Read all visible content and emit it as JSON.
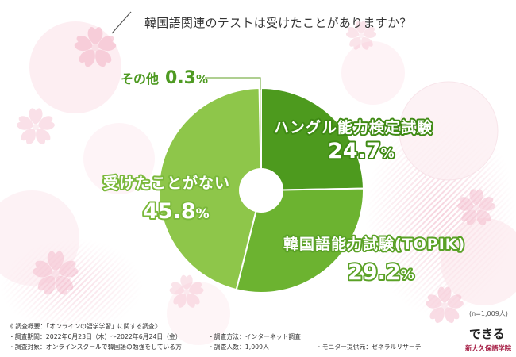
{
  "chart_data": {
    "type": "pie",
    "donut": true,
    "title": "韓国語関連のテストは受けたことがありますか？",
    "categories": [
      "ハングル能力検定試験",
      "韓国語能力試験(TOPIK)",
      "受けたことがない",
      "その他"
    ],
    "values": [
      24.7,
      29.2,
      45.8,
      0.3
    ],
    "unit": "%",
    "colors": [
      "#4d9a1e",
      "#6cb330",
      "#8ec64a",
      "#b9da8e"
    ],
    "sample_label": "(n=1,009人)"
  },
  "survey": {
    "heading": "《 調査概要：「オンラインの語学学習」に関する調査》",
    "period": "・調査期間：2022年6月23日（木）〜2022年6月24日（金）",
    "method": "・調査方法：インターネット調査",
    "target": "・調査対象：オンラインスクールで韓国語の勉強をしている方",
    "count": "・調査人数：1,009人",
    "provider": "・モニター提供元：ゼネラルリサーチ"
  },
  "logo": {
    "mark": "できる",
    "name": "新大久保語学院",
    "brand_color": "#a61e45"
  }
}
